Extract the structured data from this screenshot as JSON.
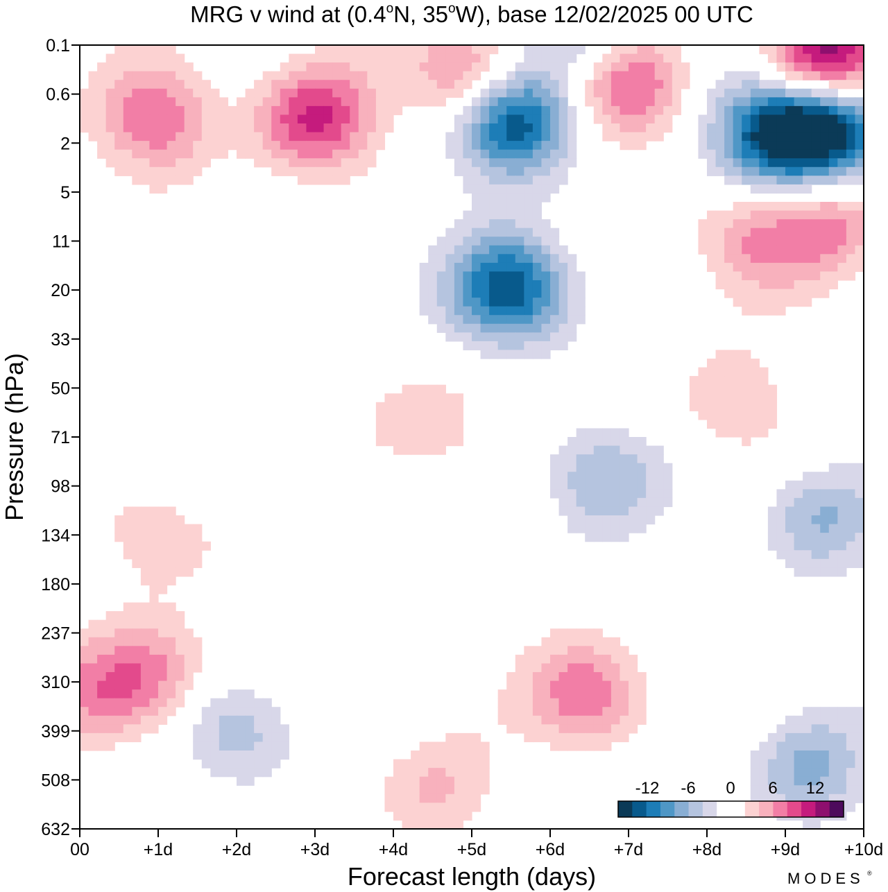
{
  "chart_data": {
    "type": "heatmap",
    "title_prefix": "MRG v wind at (0.4",
    "title_deg1": "o",
    "title_mid": "N, 35",
    "title_deg2": "o",
    "title_suffix": "W),  base 12/02/2025  00 UTC",
    "xlabel": "Forecast length (days)",
    "ylabel": "Pressure (hPa)",
    "x_ticks": [
      "00",
      "+1d",
      "+2d",
      "+3d",
      "+4d",
      "+5d",
      "+6d",
      "+7d",
      "+8d",
      "+9d",
      "+10d"
    ],
    "x_range_days": [
      0,
      10
    ],
    "y_ticks": [
      "0.1",
      "0.6",
      "2",
      "5",
      "11",
      "20",
      "33",
      "50",
      "71",
      "98",
      "134",
      "180",
      "237",
      "310",
      "399",
      "508",
      "632"
    ],
    "y_axis": "pressure levels, top to bottom",
    "colorbar": {
      "tick_labels": [
        "-12",
        "-6",
        "0",
        "6",
        "12"
      ],
      "colors": [
        "#0b3a57",
        "#085a8c",
        "#1d7db7",
        "#4f97c6",
        "#89aed3",
        "#b5c4df",
        "#d8d7e9",
        "#ffffff",
        "#ffffff",
        "#fcd2d2",
        "#f8b1bd",
        "#f27ea6",
        "#e34a8c",
        "#c51b7d",
        "#8e0f6e",
        "#4d0b5c"
      ]
    },
    "blobs": [
      {
        "x": 5.5,
        "p": 1.5,
        "v": -6
      },
      {
        "x": 5.5,
        "p": 1.5,
        "v": -10
      },
      {
        "x": 5.5,
        "p": 5,
        "v": -14
      },
      {
        "x": 6.5,
        "p": 0.0,
        "v": -6
      },
      {
        "x": 2.0,
        "p": 14,
        "v": -6
      },
      {
        "x": 6.6,
        "p": 8.8,
        "v": -6
      },
      {
        "x": 9.3,
        "p": 14.8,
        "v": -6
      },
      {
        "x": 9.4,
        "p": 9.6,
        "v": -6
      },
      {
        "x": 8.8,
        "p": 1.8,
        "v": -12
      },
      {
        "x": 9.5,
        "p": 1.7,
        "v": -16
      },
      {
        "x": 1.0,
        "p": 1.5,
        "v": 8
      },
      {
        "x": 3.0,
        "p": 1.5,
        "v": 10
      },
      {
        "x": 5.0,
        "p": 0.7,
        "v": 10
      },
      {
        "x": 7.0,
        "p": 0.8,
        "v": 10
      },
      {
        "x": 9.5,
        "p": 0.3,
        "v": 14
      },
      {
        "x": 0.3,
        "p": 13.3,
        "v": 6
      },
      {
        "x": 1.0,
        "p": 12.8,
        "v": 6
      },
      {
        "x": 6.5,
        "p": 13.3,
        "v": 8
      },
      {
        "x": 4.5,
        "p": 7.8,
        "v": 4
      },
      {
        "x": 8.3,
        "p": 7.3,
        "v": 4
      },
      {
        "x": 8.5,
        "p": 4.0,
        "v": 6
      },
      {
        "x": 9.5,
        "p": 3.6,
        "v": 6
      },
      {
        "x": 1.0,
        "p": 10.0,
        "v": 4
      },
      {
        "x": 4.5,
        "p": 15.2,
        "v": 4
      }
    ]
  },
  "watermark": "MODES",
  "watermark_mark": "®"
}
